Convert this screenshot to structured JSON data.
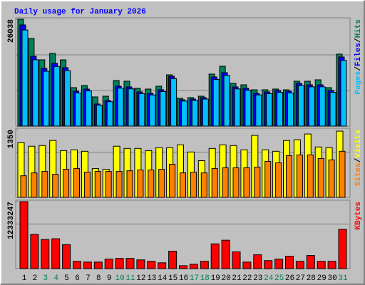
{
  "chart_data": [
    {
      "type": "bar",
      "title": "Daily usage for January 2026",
      "legend_separator": "/",
      "ylim": [
        0,
        26038
      ],
      "yticks": [
        26038
      ],
      "series": [
        {
          "name": "Hits",
          "color": "#00805c",
          "values": [
            26038,
            21353,
            16145,
            17707,
            16145,
            9374,
            9895,
            7118,
            7291,
            11110,
            10937,
            9201,
            9027,
            9722,
            12499,
            6770,
            6944,
            7291,
            12673,
            14582,
            10416,
            10069,
            8854,
            8854,
            9027,
            8854,
            10937,
            10937,
            11284,
            9374,
            17534
          ]
        },
        {
          "name": "Files",
          "color": "#0000ff",
          "values": [
            24651,
            17013,
            14062,
            15277,
            14235,
            8506,
            9027,
            5382,
            6250,
            9722,
            9548,
            8333,
            7986,
            8854,
            12152,
            6423,
            6597,
            6944,
            11978,
            13020,
            9548,
            9201,
            7986,
            8333,
            8680,
            8506,
            10416,
            10069,
            10069,
            8680,
            16839
          ]
        },
        {
          "name": "Pages",
          "color": "#00c0ff",
          "values": [
            23418,
            16162,
            13359,
            14513,
            13523,
            8081,
            8576,
            5113,
            5938,
            9236,
            9071,
            7916,
            7587,
            8411,
            11544,
            6102,
            6267,
            6597,
            11379,
            12369,
            9071,
            8741,
            7587,
            7916,
            8246,
            8081,
            9895,
            9566,
            9566,
            8246,
            15997
          ]
        }
      ]
    },
    {
      "type": "bar",
      "legend_separator": "/",
      "ylim": [
        0,
        1350
      ],
      "yticks": [
        1350
      ],
      "series": [
        {
          "name": "Visits",
          "color": "#ffff00",
          "values": [
            1091,
            1020,
            1034,
            1134,
            933,
            948,
            919,
            574,
            560,
            1020,
            976,
            976,
            933,
            991,
            991,
            1048,
            905,
            732,
            976,
            1048,
            1034,
            948,
            1235,
            948,
            919,
            1134,
            1149,
            1264,
            1005,
            991,
            1321
          ]
        },
        {
          "name": "Sites",
          "color": "#ff8000",
          "values": [
            431,
            488,
            517,
            460,
            560,
            574,
            503,
            517,
            517,
            517,
            531,
            546,
            546,
            560,
            661,
            488,
            503,
            488,
            574,
            589,
            589,
            589,
            603,
            718,
            689,
            833,
            847,
            847,
            775,
            747,
            919
          ]
        }
      ]
    },
    {
      "type": "bar",
      "ylim": [
        0,
        12333247
      ],
      "yticks": [
        12333247
      ],
      "categories": [
        "1",
        "2",
        "3",
        "4",
        "5",
        "6",
        "7",
        "8",
        "9",
        "10",
        "11",
        "12",
        "13",
        "14",
        "15",
        "16",
        "17",
        "18",
        "19",
        "20",
        "21",
        "22",
        "23",
        "24",
        "25",
        "26",
        "27",
        "28",
        "29",
        "30",
        "31"
      ],
      "category_colors": [
        "#000000",
        "#000000",
        "#00805c",
        "#00805c",
        "#000000",
        "#000000",
        "#000000",
        "#000000",
        "#000000",
        "#00805c",
        "#00805c",
        "#000000",
        "#000000",
        "#000000",
        "#000000",
        "#000000",
        "#00805c",
        "#00805c",
        "#000000",
        "#000000",
        "#000000",
        "#000000",
        "#000000",
        "#00805c",
        "#00805c",
        "#000000",
        "#000000",
        "#000000",
        "#000000",
        "#000000",
        "#00805c"
      ],
      "series": [
        {
          "name": "KBytes",
          "color": "#ff0000",
          "values": [
            12333247,
            6300680,
            5362280,
            5496337,
            4423881,
            1340570,
            1206513,
            1206513,
            1742741,
            1876798,
            1876798,
            1608684,
            1340570,
            1072456,
            3217368,
            536228,
            804342,
            1340570,
            4557938,
            5228223,
            3083311,
            1206513,
            2547083,
            1474627,
            1742741,
            2278969,
            1340570,
            2413026,
            1340570,
            1340570,
            7239078
          ]
        }
      ]
    }
  ]
}
